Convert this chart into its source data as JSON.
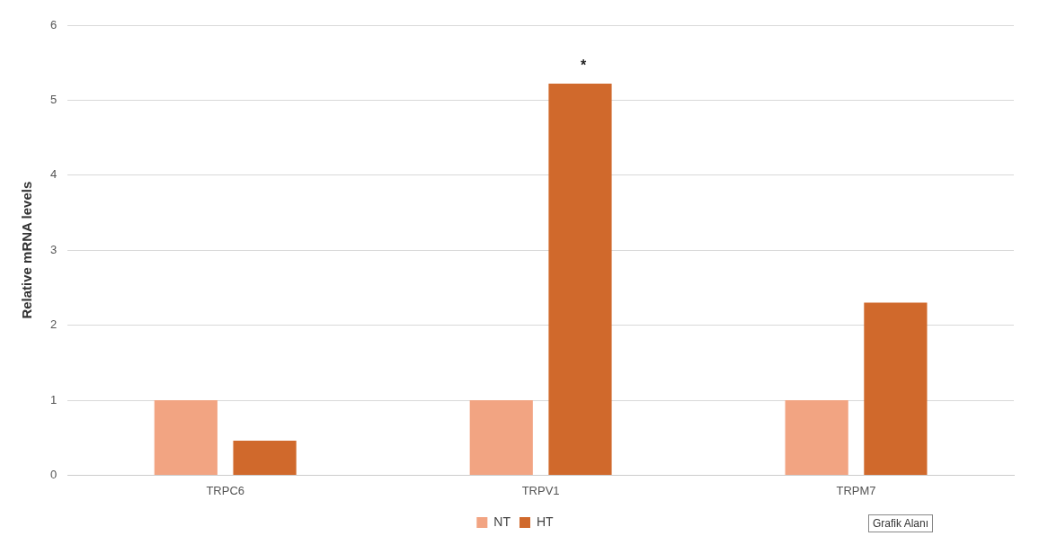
{
  "chart_data": {
    "type": "bar",
    "ylabel": "Relative mRNA levels",
    "categories": [
      "TRPC6",
      "TRPV1",
      "TRPM7"
    ],
    "series": [
      {
        "name": "NT",
        "color": "#f2a482",
        "values": [
          1,
          1,
          1
        ]
      },
      {
        "name": "HT",
        "color": "#d0692c",
        "values": [
          0.46,
          5.22,
          2.3
        ]
      }
    ],
    "ylim": [
      0,
      6
    ],
    "yticks": [
      0,
      1,
      2,
      3,
      4,
      5,
      6
    ],
    "grid": "y",
    "legend": "bottom",
    "annotations": [
      "*",
      "Grafik Alanı"
    ]
  }
}
